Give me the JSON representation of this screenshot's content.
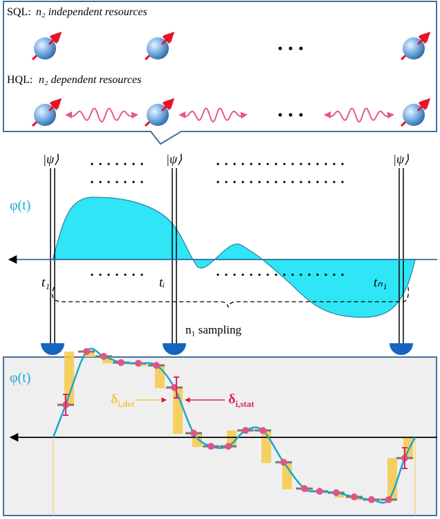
{
  "top_panel": {
    "sql_label": "SQL:",
    "sql_text": "n₂ independent resources",
    "hql_label": "HQL:",
    "hql_text": "n₂ dependent resources"
  },
  "middle": {
    "state_labels": [
      "|ψ⟩",
      "|ψ⟩",
      "|ψ⟩"
    ],
    "phase_label": "φ(t)",
    "time_labels": [
      "t₁",
      "tᵢ",
      "tₙ₁"
    ],
    "sampling_label": "n₁ sampling"
  },
  "bottom": {
    "phase_label": "φ(t)",
    "det_label": {
      "symbol": "δ",
      "subscript": "i,det"
    },
    "stat_label": {
      "symbol": "δ",
      "subscript": "i,stat"
    }
  }
}
